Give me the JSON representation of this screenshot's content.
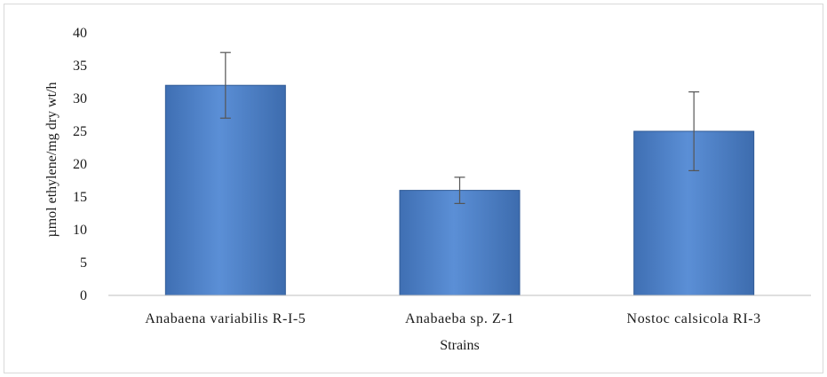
{
  "chart_data": {
    "type": "bar",
    "title": "",
    "xlabel": "Strains",
    "ylabel": "µmol ethylene/mg dry wt/h",
    "ylim": [
      0,
      40
    ],
    "yticks": [
      0,
      5,
      10,
      15,
      20,
      25,
      30,
      35,
      40
    ],
    "grid": false,
    "legend": "none",
    "categories": [
      "Anabaena variabilis R-I-5",
      "Anabaeba sp. Z-1",
      "Nostoc calsicola RI-3"
    ],
    "values": [
      32,
      16,
      25
    ],
    "error_bars": {
      "upper": [
        37,
        18,
        31
      ],
      "lower": [
        27,
        14,
        19
      ]
    },
    "colors": {
      "bar_fill": "#4a7cc2",
      "bar_fill_light": "#5b8fd6",
      "bar_edge": "#2f5a96",
      "axis": "#bfbfbf",
      "error_bar": "#555555"
    }
  }
}
